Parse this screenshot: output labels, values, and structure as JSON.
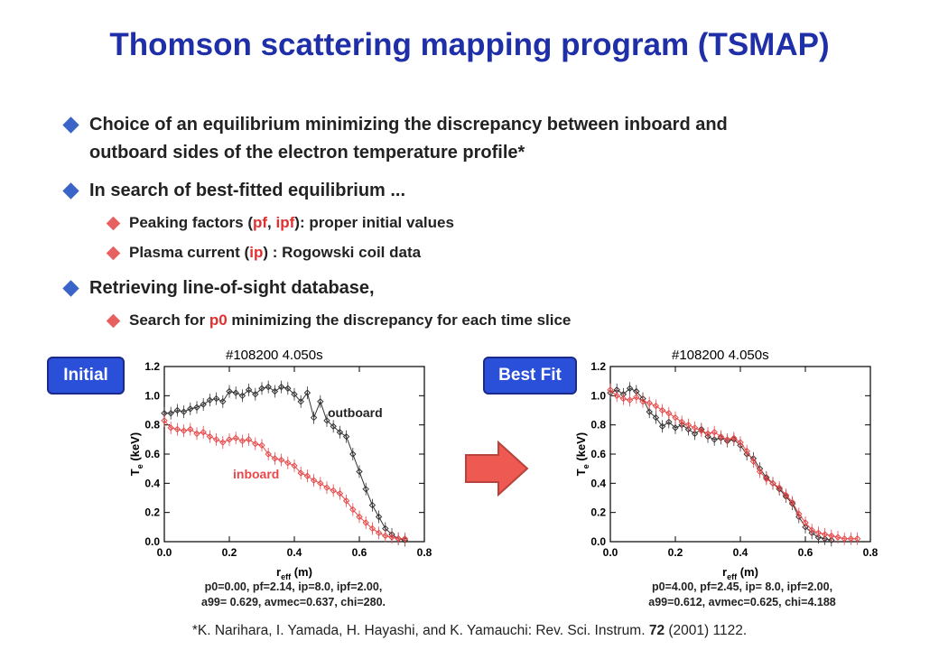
{
  "title": "Thomson scattering mapping program (TSMAP)",
  "bullets": {
    "b1_line1": "Choice of an equilibrium minimizing the discrepancy between inboard and",
    "b1_line2": "outboard sides of the electron temperature profile*",
    "b2": "In search of best-fitted equilibrium ...",
    "b2_sub1": {
      "pre": "Peaking factors (",
      "pf": "pf",
      "mid": ", ",
      "ipf": "ipf",
      "post": "): proper initial values"
    },
    "b2_sub2": {
      "pre": "Plasma current (",
      "ip": "ip",
      "post": ") : Rogowski coil data"
    },
    "b3": "Retrieving line-of-sight database,",
    "b3_sub1": {
      "pre": "Search for ",
      "p0": "p0",
      "post": " minimizing the discrepancy for each time slice"
    }
  },
  "labels": {
    "initial": "Initial",
    "best_fit": "Best Fit",
    "outboard": "outboard",
    "inboard": "inboard"
  },
  "captions": {
    "left_1": "p0=0.00, pf=2.14, ip=8.0, ipf=2.00,",
    "left_2": "a99= 0.629, avmec=0.637, chi=280.",
    "right_1": "p0=4.00, pf=2.45, ip= 8.0, ipf=2.00,",
    "right_2": "a99=0.612, avmec=0.625, chi=4.188"
  },
  "reference": {
    "pre": "*K. Narihara, I. Yamada, H. Hayashi, and K. Yamauchi: Rev. Sci. Instrum. ",
    "vol": "72",
    "post": " (2001) 1122."
  },
  "colors": {
    "title": "#1f2fa8",
    "outboard": "#333333",
    "inboard": "#e8484a",
    "tag_bg": "#2a4fd8",
    "arrow": "#ee5a52"
  },
  "chart_data": [
    {
      "type": "line",
      "title": "#108200    4.050s",
      "xlabel": "reff (m)",
      "ylabel": "Te (keV)",
      "xlim": [
        0.0,
        0.8
      ],
      "ylim": [
        0.0,
        1.2
      ],
      "xticks": [
        "0.0",
        "0.2",
        "0.4",
        "0.6",
        "0.8"
      ],
      "yticks": [
        "0.0",
        "0.2",
        "0.4",
        "0.6",
        "0.8",
        "1.0",
        "1.2"
      ],
      "series": [
        {
          "name": "outboard",
          "color": "#333333",
          "x": [
            0.0,
            0.02,
            0.04,
            0.06,
            0.08,
            0.1,
            0.12,
            0.14,
            0.16,
            0.18,
            0.2,
            0.22,
            0.24,
            0.26,
            0.28,
            0.3,
            0.32,
            0.34,
            0.36,
            0.38,
            0.4,
            0.42,
            0.44,
            0.46,
            0.48,
            0.5,
            0.52,
            0.54,
            0.56,
            0.58,
            0.6,
            0.62,
            0.64,
            0.66,
            0.68,
            0.7,
            0.72,
            0.74
          ],
          "y": [
            0.88,
            0.88,
            0.9,
            0.89,
            0.91,
            0.92,
            0.94,
            0.97,
            0.98,
            0.96,
            1.03,
            1.02,
            1.0,
            1.04,
            1.01,
            1.05,
            1.06,
            1.03,
            1.06,
            1.05,
            1.01,
            0.96,
            1.02,
            0.85,
            0.96,
            0.83,
            0.79,
            0.75,
            0.72,
            0.6,
            0.48,
            0.36,
            0.25,
            0.17,
            0.09,
            0.05,
            0.02,
            0.01
          ]
        },
        {
          "name": "inboard",
          "color": "#e8484a",
          "x": [
            0.0,
            0.02,
            0.04,
            0.06,
            0.08,
            0.1,
            0.12,
            0.14,
            0.16,
            0.18,
            0.2,
            0.22,
            0.24,
            0.26,
            0.28,
            0.3,
            0.32,
            0.34,
            0.36,
            0.38,
            0.4,
            0.42,
            0.44,
            0.46,
            0.48,
            0.5,
            0.52,
            0.54,
            0.56,
            0.58,
            0.6,
            0.62,
            0.64,
            0.66,
            0.68,
            0.7,
            0.72,
            0.74
          ],
          "y": [
            0.83,
            0.78,
            0.77,
            0.76,
            0.77,
            0.74,
            0.75,
            0.72,
            0.7,
            0.68,
            0.7,
            0.71,
            0.69,
            0.7,
            0.67,
            0.66,
            0.6,
            0.57,
            0.56,
            0.54,
            0.52,
            0.47,
            0.45,
            0.42,
            0.4,
            0.37,
            0.35,
            0.33,
            0.28,
            0.22,
            0.17,
            0.13,
            0.09,
            0.06,
            0.04,
            0.03,
            0.02,
            0.02
          ]
        }
      ]
    },
    {
      "type": "line",
      "title": "#108200    4.050s",
      "xlabel": "reff (m)",
      "ylabel": "Te (keV)",
      "xlim": [
        0.0,
        0.8
      ],
      "ylim": [
        0.0,
        1.2
      ],
      "xticks": [
        "0.0",
        "0.2",
        "0.4",
        "0.6",
        "0.8"
      ],
      "yticks": [
        "0.0",
        "0.2",
        "0.4",
        "0.6",
        "0.8",
        "1.0",
        "1.2"
      ],
      "series": [
        {
          "name": "outboard",
          "color": "#333333",
          "x": [
            0.0,
            0.02,
            0.04,
            0.06,
            0.08,
            0.1,
            0.12,
            0.14,
            0.16,
            0.18,
            0.2,
            0.22,
            0.24,
            0.26,
            0.28,
            0.3,
            0.32,
            0.34,
            0.36,
            0.38,
            0.4,
            0.42,
            0.44,
            0.46,
            0.48,
            0.5,
            0.52,
            0.54,
            0.56,
            0.58,
            0.6,
            0.62,
            0.64,
            0.66,
            0.68
          ],
          "y": [
            1.02,
            1.04,
            1.01,
            1.05,
            1.03,
            0.98,
            0.89,
            0.85,
            0.79,
            0.82,
            0.78,
            0.8,
            0.77,
            0.74,
            0.77,
            0.72,
            0.7,
            0.71,
            0.69,
            0.7,
            0.66,
            0.6,
            0.57,
            0.5,
            0.44,
            0.4,
            0.36,
            0.31,
            0.26,
            0.17,
            0.1,
            0.06,
            0.03,
            0.02,
            0.01
          ]
        },
        {
          "name": "inboard",
          "color": "#e8484a",
          "x": [
            0.0,
            0.02,
            0.04,
            0.06,
            0.08,
            0.1,
            0.12,
            0.14,
            0.16,
            0.18,
            0.2,
            0.22,
            0.24,
            0.26,
            0.28,
            0.3,
            0.32,
            0.34,
            0.36,
            0.38,
            0.4,
            0.42,
            0.44,
            0.46,
            0.48,
            0.5,
            0.52,
            0.54,
            0.56,
            0.58,
            0.6,
            0.62,
            0.64,
            0.66,
            0.68,
            0.7,
            0.72,
            0.74,
            0.76
          ],
          "y": [
            1.04,
            1.0,
            0.98,
            0.97,
            0.99,
            0.96,
            0.95,
            0.93,
            0.9,
            0.88,
            0.85,
            0.82,
            0.8,
            0.78,
            0.76,
            0.74,
            0.75,
            0.72,
            0.7,
            0.71,
            0.68,
            0.62,
            0.55,
            0.48,
            0.43,
            0.4,
            0.37,
            0.32,
            0.27,
            0.19,
            0.13,
            0.08,
            0.06,
            0.05,
            0.04,
            0.03,
            0.02,
            0.02,
            0.02
          ]
        }
      ]
    }
  ]
}
